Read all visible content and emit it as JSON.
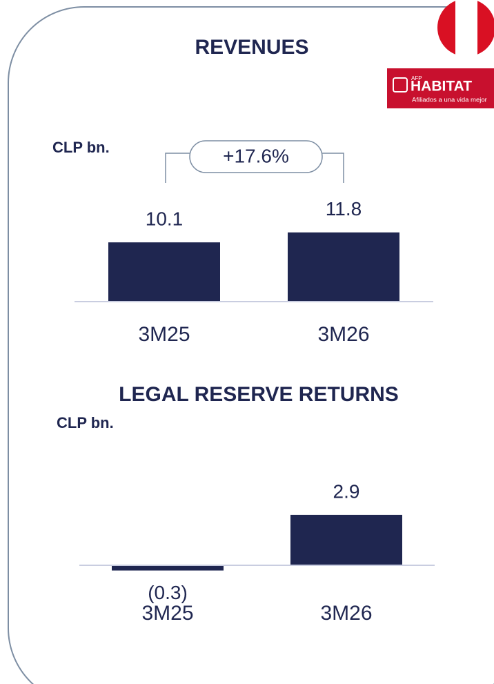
{
  "chart_data": [
    {
      "type": "bar",
      "title": "REVENUES",
      "subtitle": "CLP bn.",
      "annotation": "+17.6%",
      "categories": [
        "3M25",
        "3M26"
      ],
      "values": [
        10.1,
        11.8
      ],
      "color": "#1f2650",
      "ylim": [
        0,
        20
      ]
    },
    {
      "type": "bar",
      "title": "LEGAL RESERVE RETURNS",
      "subtitle": "CLP bn.",
      "categories": [
        "3M25",
        "3M26"
      ],
      "values": [
        -0.3,
        2.9
      ],
      "value_labels": [
        "(0.3)",
        "2.9"
      ],
      "color": "#1f2650",
      "ylim": [
        -0.5,
        4
      ]
    }
  ],
  "logo": {
    "small": "AFP",
    "name": "HABITAT",
    "tagline": "Afiliados a una vida mejor"
  }
}
